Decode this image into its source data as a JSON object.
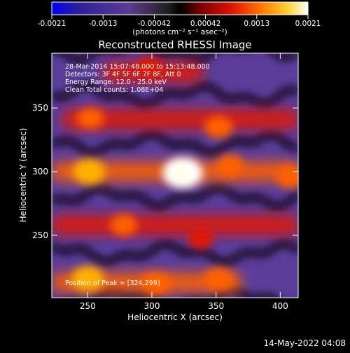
{
  "colors": {
    "background": "#000000",
    "foreground": "#ffffff",
    "colormap": [
      "#0000ff",
      "#3a2a9a",
      "#5b3b9a",
      "#000000",
      "#8b0000",
      "#ff2000",
      "#ff9000",
      "#ffff60",
      "#ffffff"
    ]
  },
  "colorbar": {
    "tick_labels": [
      "-0.0021",
      "-0.0013",
      "-0.00042",
      "0.00042",
      "0.0013",
      "0.0021"
    ],
    "units": "(photons cm⁻² s⁻¹ asec⁻²)"
  },
  "annotations": {
    "line1": "28-Mar-2014 15:07:48.000 to 15:13:48.000",
    "line2": "Detectors: 3F 4F 5F 6F 7F 8F, Att 0",
    "line3": "Energy Range: 12.0 - 25.0 keV",
    "line4": "Clean    Total counts: 1.08E+04",
    "peak": "Position of Peak = [324,299]"
  },
  "footer": {
    "timestamp": "14-May-2022 04:08"
  },
  "chart_data": {
    "type": "heatmap",
    "title": "Reconstructed RHESSI Image",
    "xlabel": "Heliocentric X (arcsec)",
    "ylabel": "Heliocentric Y (arcsec)",
    "xlim": [
      222,
      414
    ],
    "ylim": [
      201,
      393
    ],
    "xticks": [
      250,
      300,
      350,
      400
    ],
    "yticks": [
      250,
      300,
      350
    ],
    "colorbar_range": [
      -0.0021,
      0.0021
    ],
    "peak_position": [
      324,
      299
    ],
    "emission_bands": [
      {
        "y": 378,
        "x_from": 262,
        "x_to": 340,
        "level": 0.35
      },
      {
        "y": 341,
        "x_from": 230,
        "x_to": 414,
        "level": 0.45
      },
      {
        "y": 300,
        "x_from": 222,
        "x_to": 414,
        "level": 0.55
      },
      {
        "y": 258,
        "x_from": 222,
        "x_to": 414,
        "level": 0.4
      },
      {
        "y": 213,
        "x_from": 222,
        "x_to": 370,
        "level": 0.55
      }
    ],
    "hot_spots": [
      {
        "x": 324,
        "y": 299,
        "level": 1.0
      },
      {
        "x": 251,
        "y": 300,
        "level": 0.7
      },
      {
        "x": 361,
        "y": 305,
        "level": 0.5
      },
      {
        "x": 408,
        "y": 296,
        "level": 0.55
      },
      {
        "x": 252,
        "y": 342,
        "level": 0.5
      },
      {
        "x": 352,
        "y": 335,
        "level": 0.55
      },
      {
        "x": 278,
        "y": 258,
        "level": 0.5
      },
      {
        "x": 338,
        "y": 247,
        "level": 0.45
      },
      {
        "x": 250,
        "y": 216,
        "level": 0.7
      },
      {
        "x": 303,
        "y": 212,
        "level": 0.6
      },
      {
        "x": 352,
        "y": 216,
        "level": 0.55
      },
      {
        "x": 298,
        "y": 382,
        "level": 0.45
      }
    ]
  }
}
